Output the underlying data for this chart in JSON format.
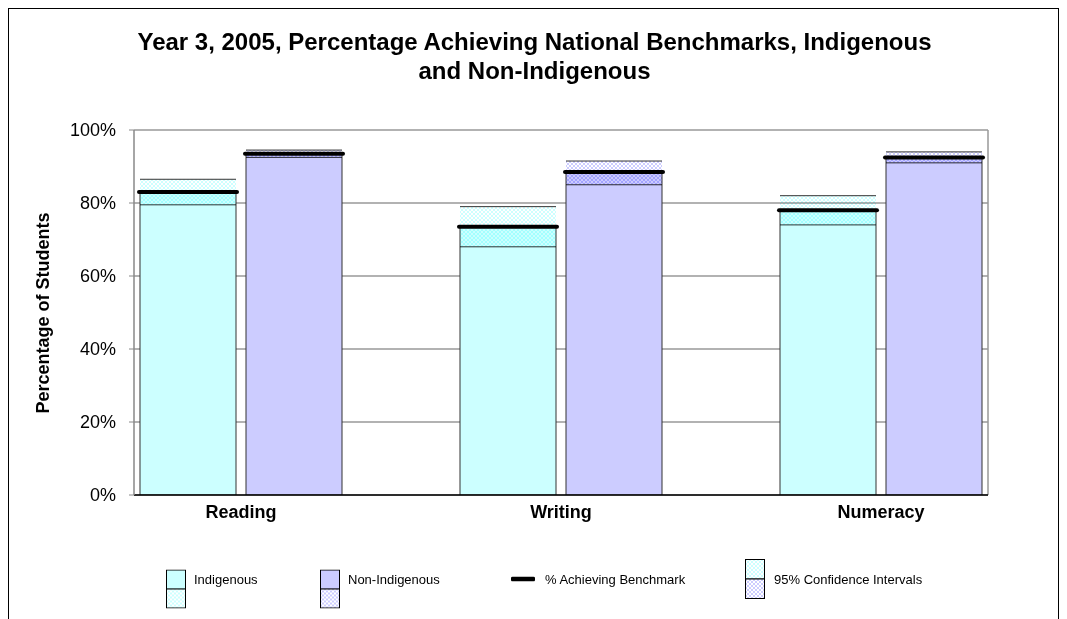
{
  "chart_data": {
    "type": "bar",
    "title": "Year 3, 2005, Percentage Achieving National Benchmarks, Indigenous and Non-Indigenous",
    "ylabel": "Percentage of Students",
    "categories": [
      "Reading",
      "Writing",
      "Numeracy"
    ],
    "series": [
      {
        "name": "Indigenous",
        "color": "#ccffff",
        "values": [
          83,
          73.5,
          78
        ],
        "errors": [
          [
            79.5,
            86.5
          ],
          [
            68,
            79
          ],
          [
            74,
            82
          ]
        ]
      },
      {
        "name": "Non-Indigenous",
        "color": "#ccccff",
        "values": [
          93.5,
          88.5,
          92.5
        ],
        "errors": [
          [
            92.5,
            94.5
          ],
          [
            85,
            91.5
          ],
          [
            91,
            94
          ]
        ]
      }
    ],
    "ylim": [
      0,
      100
    ],
    "yticks": [
      {
        "value": 0,
        "label": "0%"
      },
      {
        "value": 20,
        "label": "20%"
      },
      {
        "value": 40,
        "label": "40%"
      },
      {
        "value": 60,
        "label": "60%"
      },
      {
        "value": 80,
        "label": "80%"
      },
      {
        "value": 100,
        "label": "100%"
      }
    ],
    "grid": "y",
    "legend": "bottom",
    "annotations": [
      "% Achieving Benchmark",
      "95% Confidence Intervals"
    ]
  }
}
